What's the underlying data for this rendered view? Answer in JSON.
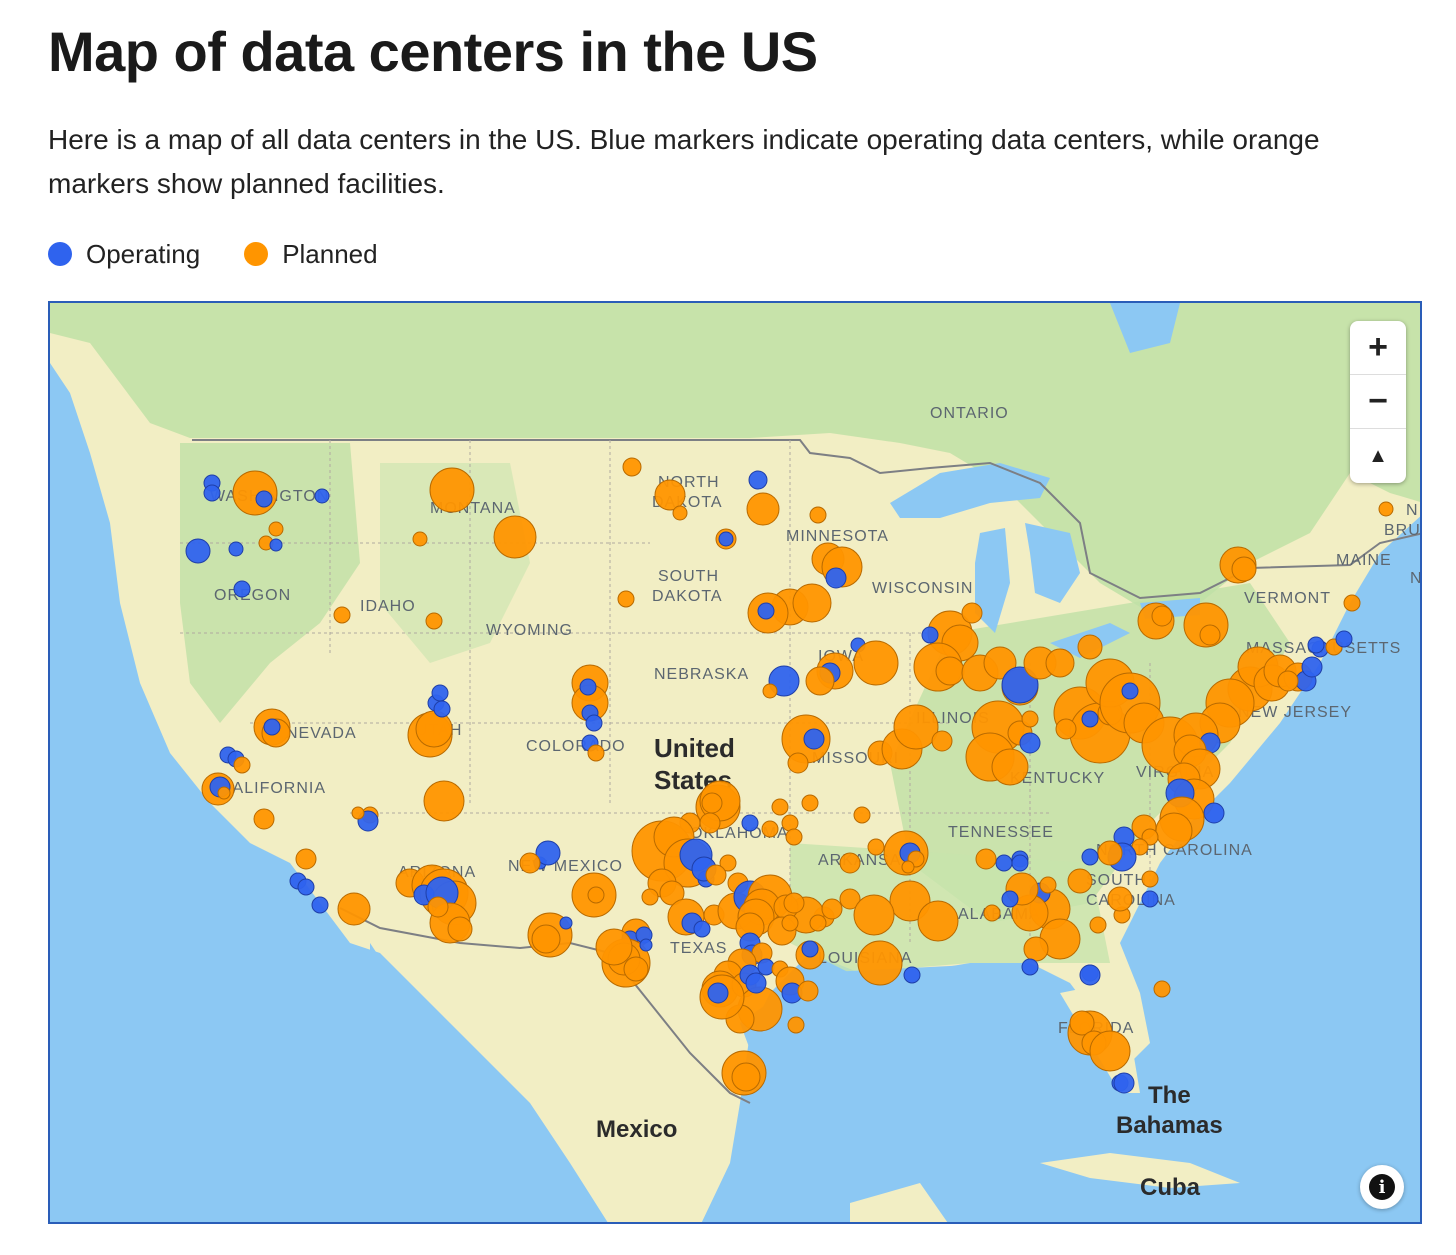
{
  "page": {
    "title": "Map of data centers in the US",
    "intro": "Here is a map of all data centers in the US. Blue markers indicate operating data centers, while orange markers show planned facilities."
  },
  "legend": [
    {
      "label": "Operating",
      "color": "#2f63ee"
    },
    {
      "label": "Planned",
      "color": "#ff9500"
    }
  ],
  "map_labels": {
    "country_us_line1": "United",
    "country_us_line2": "States",
    "mexico": "Mexico",
    "bahamas_line1": "The",
    "bahamas_line2": "Bahamas",
    "cuba": "Cuba",
    "ontario": "ONTARIO",
    "washington": "WASHINGTON",
    "montana": "MONTANA",
    "north_dakota_1": "NORTH",
    "north_dakota_2": "DAKOTA",
    "minnesota": "MINNESOTA",
    "south_dakota_1": "SOUTH",
    "south_dakota_2": "DAKOTA",
    "wisconsin": "WISCONSIN",
    "oregon": "OREGON",
    "idaho": "IDAHO",
    "wyoming": "WYOMING",
    "nebraska": "NEBRASKA",
    "iowa": "IOWA",
    "nevada": "NEVADA",
    "utah": "UTAH",
    "colorado": "COLORADO",
    "illinois": "ILLINOIS",
    "missouri": "MISSOURI",
    "kentucky": "KENTUCKY",
    "virginia": "VIRGINIA",
    "california": "CALIFORNIA",
    "oklahoma": "OKLAHOMA",
    "arkansas": "ARKANSAS",
    "tennessee": "TENNESSEE",
    "north_carolina": "NORTH CAROLINA",
    "south_carolina_1": "SOUTH",
    "south_carolina_2": "CAROLINA",
    "arizona": "ARIZONA",
    "new_mexico": "NEW MEXICO",
    "texas": "TEXAS",
    "louisiana": "LOUISIANA",
    "alabama": "ALABAMA",
    "florida": "FLORIDA",
    "vermont": "VERMONT",
    "maine": "MAINE",
    "massachusetts": "MASSACHUSETTS",
    "new_jersey": "NEW JERSEY",
    "new_brunswick_1": "N",
    "new_brunswick_2": "BRUN",
    "nova_scotia": "N"
  },
  "controls": {
    "zoom_in": "+",
    "zoom_out": "−",
    "reset_north": "▲",
    "info": "i"
  },
  "colors": {
    "water": "#8cc8f3",
    "land": "#f2eec4",
    "forest": "#bfe0a6",
    "operating": "#2f63ee",
    "planned": "#ff9500"
  },
  "markers": {
    "operating_icon": "blue-circle",
    "planned_icon": "orange-circle"
  }
}
